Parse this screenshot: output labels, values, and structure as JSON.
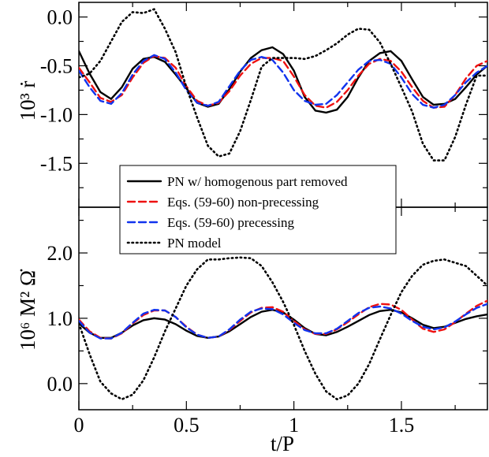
{
  "chart_data": [
    {
      "type": "line",
      "panel": "top",
      "ylabel": "10³ ṙ",
      "ylim": [
        -1.95,
        0.15
      ],
      "yticks": [
        0.0,
        -0.5,
        -1.0,
        -1.5
      ],
      "yticklabels": [
        "0.0",
        "-0.5",
        "-1.0",
        "-1.5"
      ],
      "xlim": [
        0,
        1.9
      ],
      "grid": false,
      "legend": "inside, bottom-left",
      "series": [
        {
          "name": "PN w/ homogenous part removed",
          "style": "solid",
          "color": "#000000",
          "x": [
            0,
            0.05,
            0.1,
            0.15,
            0.2,
            0.25,
            0.3,
            0.35,
            0.4,
            0.45,
            0.5,
            0.55,
            0.6,
            0.65,
            0.7,
            0.75,
            0.8,
            0.85,
            0.9,
            0.95,
            1.0,
            1.05,
            1.1,
            1.15,
            1.2,
            1.25,
            1.3,
            1.35,
            1.4,
            1.45,
            1.5,
            1.55,
            1.6,
            1.65,
            1.7,
            1.75,
            1.8,
            1.85,
            1.9
          ],
          "y": [
            -0.35,
            -0.58,
            -0.77,
            -0.84,
            -0.72,
            -0.53,
            -0.43,
            -0.41,
            -0.46,
            -0.59,
            -0.73,
            -0.88,
            -0.92,
            -0.89,
            -0.74,
            -0.56,
            -0.42,
            -0.34,
            -0.31,
            -0.38,
            -0.55,
            -0.82,
            -0.96,
            -0.98,
            -0.95,
            -0.82,
            -0.62,
            -0.45,
            -0.37,
            -0.35,
            -0.45,
            -0.64,
            -0.82,
            -0.9,
            -0.89,
            -0.84,
            -0.72,
            -0.59,
            -0.5
          ]
        },
        {
          "name": "Eqs. (59-60) non-precessing",
          "style": "dashed",
          "color": "#ee1111",
          "x": [
            0,
            0.05,
            0.1,
            0.15,
            0.2,
            0.25,
            0.3,
            0.35,
            0.4,
            0.45,
            0.5,
            0.55,
            0.6,
            0.65,
            0.7,
            0.75,
            0.8,
            0.85,
            0.9,
            0.95,
            1.0,
            1.05,
            1.1,
            1.15,
            1.2,
            1.25,
            1.3,
            1.35,
            1.4,
            1.45,
            1.5,
            1.55,
            1.6,
            1.65,
            1.7,
            1.75,
            1.8,
            1.85,
            1.9
          ],
          "y": [
            -0.52,
            -0.67,
            -0.83,
            -0.87,
            -0.8,
            -0.62,
            -0.47,
            -0.4,
            -0.42,
            -0.52,
            -0.71,
            -0.86,
            -0.91,
            -0.88,
            -0.76,
            -0.6,
            -0.48,
            -0.42,
            -0.42,
            -0.45,
            -0.61,
            -0.8,
            -0.91,
            -0.93,
            -0.87,
            -0.75,
            -0.6,
            -0.48,
            -0.43,
            -0.45,
            -0.56,
            -0.72,
            -0.86,
            -0.93,
            -0.92,
            -0.8,
            -0.63,
            -0.5,
            -0.45
          ]
        },
        {
          "name": "Eqs. (59-60) precessing",
          "style": "dashed",
          "color": "#1133ee",
          "x": [
            0,
            0.05,
            0.1,
            0.15,
            0.2,
            0.25,
            0.3,
            0.35,
            0.4,
            0.45,
            0.5,
            0.55,
            0.6,
            0.65,
            0.7,
            0.75,
            0.8,
            0.85,
            0.9,
            0.95,
            1.0,
            1.05,
            1.1,
            1.15,
            1.2,
            1.25,
            1.3,
            1.35,
            1.4,
            1.45,
            1.5,
            1.55,
            1.6,
            1.65,
            1.7,
            1.75,
            1.8,
            1.85,
            1.9
          ],
          "y": [
            -0.55,
            -0.72,
            -0.86,
            -0.89,
            -0.78,
            -0.59,
            -0.45,
            -0.39,
            -0.43,
            -0.57,
            -0.75,
            -0.88,
            -0.91,
            -0.87,
            -0.71,
            -0.55,
            -0.44,
            -0.41,
            -0.44,
            -0.57,
            -0.75,
            -0.86,
            -0.9,
            -0.89,
            -0.8,
            -0.67,
            -0.54,
            -0.45,
            -0.44,
            -0.48,
            -0.62,
            -0.79,
            -0.9,
            -0.93,
            -0.9,
            -0.8,
            -0.67,
            -0.57,
            -0.5
          ]
        },
        {
          "name": "PN model",
          "style": "dotted",
          "color": "#000000",
          "x": [
            0,
            0.05,
            0.1,
            0.15,
            0.2,
            0.25,
            0.3,
            0.35,
            0.4,
            0.45,
            0.5,
            0.55,
            0.6,
            0.65,
            0.7,
            0.75,
            0.8,
            0.85,
            0.9,
            0.95,
            1.0,
            1.05,
            1.1,
            1.15,
            1.2,
            1.25,
            1.3,
            1.35,
            1.4,
            1.45,
            1.5,
            1.55,
            1.6,
            1.65,
            1.7,
            1.75,
            1.8,
            1.85,
            1.9
          ],
          "y": [
            -0.62,
            -0.58,
            -0.45,
            -0.25,
            -0.05,
            0.05,
            0.04,
            0.08,
            -0.12,
            -0.36,
            -0.72,
            -1.03,
            -1.32,
            -1.43,
            -1.4,
            -1.17,
            -0.85,
            -0.51,
            -0.42,
            -0.42,
            -0.42,
            -0.43,
            -0.4,
            -0.34,
            -0.27,
            -0.18,
            -0.12,
            -0.13,
            -0.26,
            -0.48,
            -0.72,
            -0.97,
            -1.3,
            -1.47,
            -1.47,
            -1.23,
            -0.9,
            -0.6,
            -0.6
          ]
        }
      ]
    },
    {
      "type": "line",
      "panel": "bottom",
      "ylabel": "10⁶ M² Ω̇",
      "xlabel": "t/P",
      "ylim": [
        -0.4,
        2.7
      ],
      "yticks": [
        0.0,
        1.0,
        2.0
      ],
      "yticklabels": [
        "0.0",
        "1.0",
        "2.0"
      ],
      "xlim": [
        0,
        1.9
      ],
      "xticks": [
        0,
        0.5,
        1.0,
        1.5
      ],
      "xticklabels": [
        "0",
        "0.5",
        "1",
        "1.5"
      ],
      "grid": false,
      "series": [
        {
          "name": "PN w/ homogenous part removed",
          "style": "solid",
          "color": "#000000",
          "x": [
            0,
            0.05,
            0.1,
            0.15,
            0.2,
            0.25,
            0.3,
            0.35,
            0.4,
            0.45,
            0.5,
            0.55,
            0.6,
            0.65,
            0.7,
            0.75,
            0.8,
            0.85,
            0.9,
            0.95,
            1.0,
            1.05,
            1.1,
            1.15,
            1.2,
            1.25,
            1.3,
            1.35,
            1.4,
            1.45,
            1.5,
            1.55,
            1.6,
            1.65,
            1.7,
            1.75,
            1.8,
            1.85,
            1.9
          ],
          "y": [
            0.92,
            0.78,
            0.7,
            0.7,
            0.78,
            0.89,
            0.97,
            1.0,
            0.98,
            0.91,
            0.81,
            0.73,
            0.7,
            0.72,
            0.8,
            0.91,
            1.02,
            1.1,
            1.13,
            1.09,
            0.98,
            0.85,
            0.76,
            0.74,
            0.79,
            0.87,
            0.96,
            1.05,
            1.11,
            1.13,
            1.09,
            1.0,
            0.9,
            0.85,
            0.87,
            0.93,
            0.99,
            1.03,
            1.06
          ]
        },
        {
          "name": "Eqs. (59-60) non-precessing",
          "style": "dashed",
          "color": "#ee1111",
          "x": [
            0,
            0.05,
            0.1,
            0.15,
            0.2,
            0.25,
            0.3,
            0.35,
            0.4,
            0.45,
            0.5,
            0.55,
            0.6,
            0.65,
            0.7,
            0.75,
            0.8,
            0.85,
            0.9,
            0.95,
            1.0,
            1.05,
            1.1,
            1.15,
            1.2,
            1.25,
            1.3,
            1.35,
            1.4,
            1.45,
            1.5,
            1.55,
            1.6,
            1.65,
            1.7,
            1.75,
            1.8,
            1.85,
            1.9
          ],
          "y": [
            0.98,
            0.8,
            0.7,
            0.69,
            0.77,
            0.92,
            1.05,
            1.12,
            1.12,
            1.02,
            0.87,
            0.75,
            0.7,
            0.72,
            0.82,
            0.96,
            1.09,
            1.16,
            1.17,
            1.1,
            0.96,
            0.83,
            0.76,
            0.76,
            0.83,
            0.94,
            1.06,
            1.17,
            1.22,
            1.21,
            1.13,
            0.98,
            0.84,
            0.79,
            0.83,
            0.94,
            1.07,
            1.19,
            1.27
          ]
        },
        {
          "name": "Eqs. (59-60) precessing",
          "style": "dashed",
          "color": "#1133ee",
          "x": [
            0,
            0.05,
            0.1,
            0.15,
            0.2,
            0.25,
            0.3,
            0.35,
            0.4,
            0.45,
            0.5,
            0.55,
            0.6,
            0.65,
            0.7,
            0.75,
            0.8,
            0.85,
            0.9,
            0.95,
            1.0,
            1.05,
            1.1,
            1.15,
            1.2,
            1.25,
            1.3,
            1.35,
            1.4,
            1.45,
            1.5,
            1.55,
            1.6,
            1.65,
            1.7,
            1.75,
            1.8,
            1.85,
            1.9
          ],
          "y": [
            0.96,
            0.78,
            0.69,
            0.69,
            0.78,
            0.93,
            1.07,
            1.13,
            1.12,
            1.02,
            0.86,
            0.75,
            0.7,
            0.72,
            0.83,
            0.98,
            1.1,
            1.15,
            1.14,
            1.06,
            0.93,
            0.82,
            0.77,
            0.77,
            0.84,
            0.96,
            1.08,
            1.16,
            1.18,
            1.15,
            1.07,
            0.96,
            0.87,
            0.83,
            0.86,
            0.95,
            1.06,
            1.16,
            1.22
          ]
        },
        {
          "name": "PN model",
          "style": "dotted",
          "color": "#000000",
          "x": [
            0,
            0.05,
            0.1,
            0.15,
            0.2,
            0.25,
            0.3,
            0.35,
            0.4,
            0.45,
            0.5,
            0.55,
            0.6,
            0.65,
            0.7,
            0.75,
            0.8,
            0.85,
            0.9,
            0.95,
            1.0,
            1.05,
            1.1,
            1.15,
            1.2,
            1.25,
            1.3,
            1.35,
            1.4,
            1.45,
            1.5,
            1.55,
            1.6,
            1.65,
            1.7,
            1.75,
            1.8,
            1.85,
            1.9
          ],
          "y": [
            0.92,
            0.45,
            0.03,
            -0.15,
            -0.24,
            -0.17,
            0.05,
            0.4,
            0.8,
            1.15,
            1.5,
            1.75,
            1.9,
            1.9,
            1.92,
            1.93,
            1.92,
            1.8,
            1.55,
            1.25,
            0.9,
            0.5,
            0.15,
            -0.12,
            -0.24,
            -0.18,
            0.0,
            0.3,
            0.68,
            1.05,
            1.4,
            1.65,
            1.82,
            1.88,
            1.9,
            1.85,
            1.8,
            1.65,
            1.5
          ]
        }
      ]
    }
  ],
  "legend": {
    "entries": [
      {
        "label": "PN w/ homogenous part removed",
        "style": "solid",
        "color": "#000000"
      },
      {
        "label": "Eqs. (59-60) non-precessing",
        "style": "dashed",
        "color": "#ee1111"
      },
      {
        "label": "Eqs. (59-60) precessing",
        "style": "dashed",
        "color": "#1133ee"
      },
      {
        "label": "PN model",
        "style": "dotted",
        "color": "#000000"
      }
    ]
  }
}
